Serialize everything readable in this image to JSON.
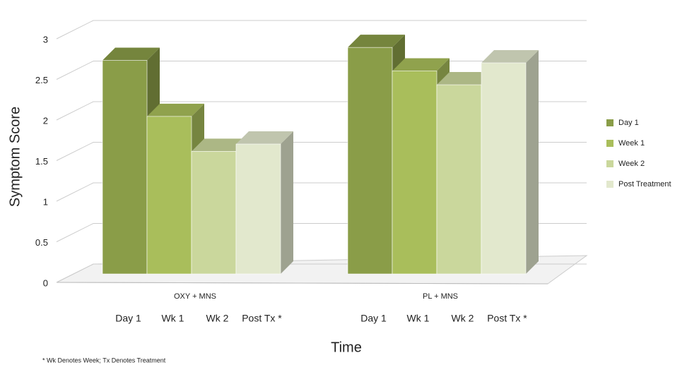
{
  "chart_data": {
    "type": "bar3d",
    "y_label": "Symptom Score",
    "x_label": "Time",
    "categories": [
      "OXY + MNS",
      "PL + MNS"
    ],
    "bar_labels": [
      "Day 1",
      "Wk 1",
      "Wk 2",
      "Post Tx *"
    ],
    "series": [
      {
        "name": "Day 1",
        "color": "#8a9d48",
        "values": [
          2.63,
          2.79
        ]
      },
      {
        "name": "Week 1",
        "color": "#a9be5b",
        "values": [
          1.94,
          2.5
        ]
      },
      {
        "name": "Week 2",
        "color": "#cad79c",
        "values": [
          1.51,
          2.33
        ]
      },
      {
        "name": "Post Treatment",
        "color": "#e2e8cd",
        "values": [
          1.6,
          2.6
        ]
      }
    ],
    "ylim": [
      0,
      3
    ],
    "yticks": [
      0,
      0.5,
      1,
      1.5,
      2,
      2.5,
      3
    ],
    "grid": true,
    "footnote": "* Wk Denotes Week; Tx Denotes Treatment"
  }
}
